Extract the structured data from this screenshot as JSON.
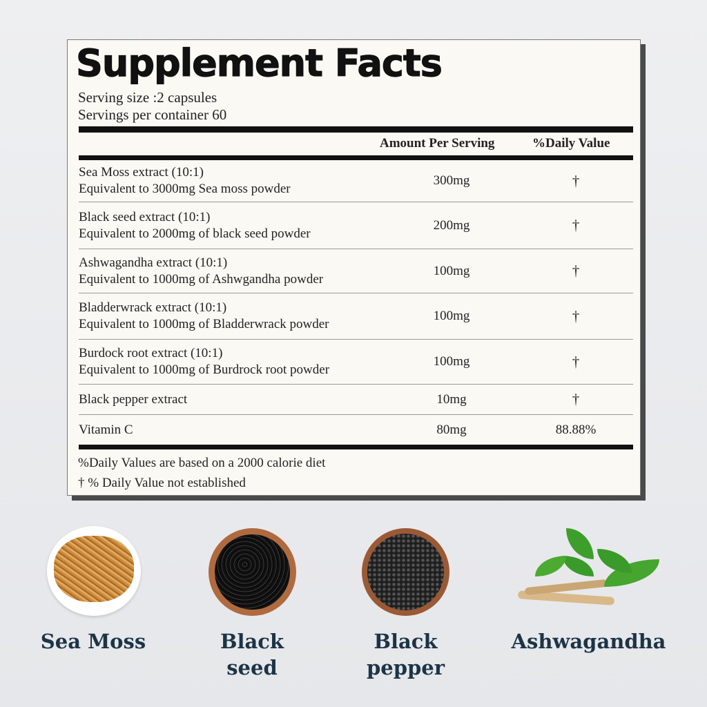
{
  "title": "Supplement Facts",
  "serving_size": "Serving size :2 capsules",
  "servings_per_container": "Servings per container 60",
  "headers": {
    "amount": "Amount Per Serving",
    "daily_value": "%Daily Value"
  },
  "rows": [
    {
      "name": "Sea Moss extract (10:1)",
      "detail": "Equivalent to 3000mg Sea moss powder",
      "amount": "300mg",
      "dv": "†"
    },
    {
      "name": "Black seed extract (10:1)",
      "detail": "Equivalent to 2000mg of black seed powder",
      "amount": "200mg",
      "dv": "†"
    },
    {
      "name": "Ashwagandha extract (10:1)",
      "detail": "Equivalent to 1000mg of Ashwgandha powder",
      "amount": "100mg",
      "dv": "†"
    },
    {
      "name": "Bladderwrack extract (10:1)",
      "detail": "Equivalent to 1000mg of Bladderwrack powder",
      "amount": "100mg",
      "dv": "†"
    },
    {
      "name": "Burdock root extract (10:1)",
      "detail": "Equivalent to 1000mg of Burdrock root powder",
      "amount": "100mg",
      "dv": "†"
    },
    {
      "name": "Black pepper extract",
      "detail": "",
      "amount": "10mg",
      "dv": "†"
    },
    {
      "name": "Vitamin C",
      "detail": "",
      "amount": "80mg",
      "dv": "88.88%"
    }
  ],
  "footnotes": [
    "%Daily Values are based on a 2000 calorie diet",
    "† % Daily Value not established"
  ],
  "ingredients": [
    {
      "line1": "Sea Moss",
      "line2": ""
    },
    {
      "line1": "Black",
      "line2": "seed"
    },
    {
      "line1": "Black",
      "line2": "pepper"
    },
    {
      "line1": "Ashwagandha",
      "line2": ""
    }
  ],
  "colors": {
    "label_text": "#1d3447",
    "card_bg": "#fbf9f3"
  }
}
